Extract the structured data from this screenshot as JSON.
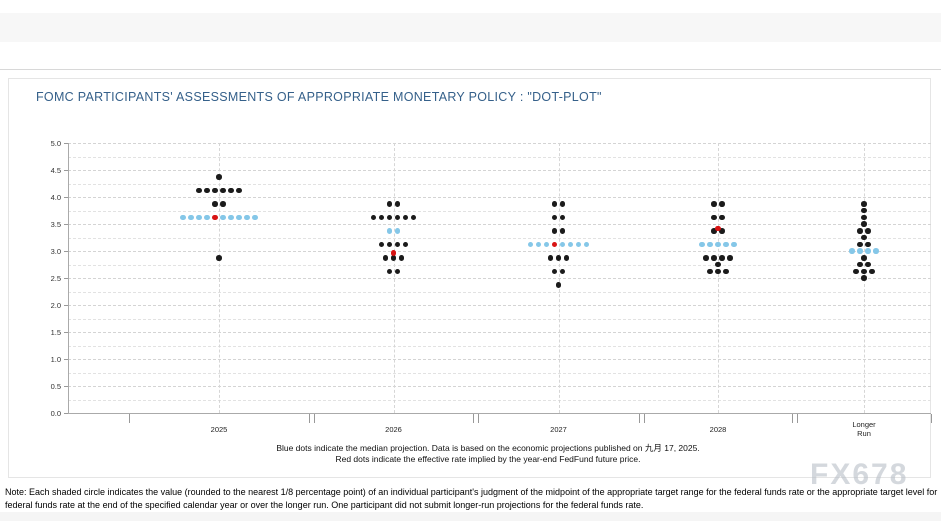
{
  "header": {
    "title": "FOMC PARTICIPANTS' ASSESSMENTS OF APPROPRIATE MONETARY POLICY : \"DOT-PLOT\""
  },
  "watermark": "FX678",
  "captions": {
    "line1": "Blue dots indicate the median projection. Data is based on the economic projections published on 九月 17, 2025.",
    "line2": "Red dots indicate the effective rate implied by the year-end FedFund future price."
  },
  "note": {
    "line1": "Note: Each shaded circle indicates the value (rounded to the nearest 1/8 percentage point) of an individual participant's judgment of the midpoint of the appropriate target range for the federal funds rate or the appropriate target level for the",
    "line2": "federal funds rate at the end of the specified calendar year or over the longer run. One participant did not submit longer-run projections for the federal funds rate."
  },
  "chart_data": {
    "type": "scatter",
    "subtype": "dot-plot",
    "title": "FOMC PARTICIPANTS' ASSESSMENTS OF APPROPRIATE MONETARY POLICY : \"DOT-PLOT\"",
    "ylim": [
      0.0,
      5.0
    ],
    "ytick_labels": [
      "5.0",
      "4.5",
      "4.0",
      "3.5",
      "3.0",
      "2.5",
      "2.0",
      "1.5",
      "1.0",
      "0.5",
      "0.0"
    ],
    "categories": [
      "2025",
      "2026",
      "2027",
      "2028",
      "Longer Run"
    ],
    "grid": "dashed, horizontal every 0.25, vertical dashed line at each column center",
    "legend": {
      "blue_dots": "median projection",
      "red_dots": "effective rate implied by the year-end FedFund future price",
      "black_dots": "individual participant projections"
    },
    "medians": {
      "2025": 3.625,
      "2026": 3.375,
      "2027": 3.125,
      "2028": 3.125,
      "Longer Run": 3.0
    },
    "effective_rate_dots": [
      {
        "column": "2025",
        "value": 3.625
      },
      {
        "column": "2026",
        "value": 2.96
      },
      {
        "column": "2027",
        "value": 3.125
      },
      {
        "column": "2028",
        "value": 3.42
      }
    ],
    "colors": {
      "participant_dot": "#1b1b1b",
      "median_dot": "#85c7e8",
      "effective_rate_dot": "#d81414",
      "title_text": "#35608a"
    },
    "columns": [
      {
        "label": "2025",
        "rows": [
          {
            "value": 4.375,
            "count": 1,
            "color": "black"
          },
          {
            "value": 4.125,
            "count": 6,
            "color": "black"
          },
          {
            "value": 3.875,
            "count": 2,
            "color": "black"
          },
          {
            "value": 3.625,
            "pattern": [
              "blue",
              "blue",
              "blue",
              "blue",
              "red",
              "blue",
              "blue",
              "blue",
              "blue",
              "blue"
            ]
          },
          {
            "value": 2.875,
            "count": 1,
            "color": "black"
          }
        ]
      },
      {
        "label": "2026",
        "rows": [
          {
            "value": 3.875,
            "count": 2,
            "color": "black"
          },
          {
            "value": 3.625,
            "count": 6,
            "color": "black"
          },
          {
            "value": 3.375,
            "count": 2,
            "color": "blue"
          },
          {
            "value": 3.125,
            "count": 4,
            "color": "black"
          },
          {
            "value": 2.875,
            "count": 3,
            "color": "black"
          },
          {
            "value": 2.625,
            "count": 2,
            "color": "black"
          },
          {
            "value": 2.96,
            "count": 1,
            "color": "red"
          }
        ]
      },
      {
        "label": "2027",
        "rows": [
          {
            "value": 3.875,
            "count": 2,
            "color": "black"
          },
          {
            "value": 3.625,
            "count": 2,
            "color": "black"
          },
          {
            "value": 3.375,
            "count": 2,
            "color": "black"
          },
          {
            "value": 3.125,
            "pattern": [
              "blue",
              "blue",
              "blue",
              "red",
              "blue",
              "blue",
              "blue",
              "blue"
            ]
          },
          {
            "value": 2.875,
            "count": 3,
            "color": "black"
          },
          {
            "value": 2.625,
            "count": 2,
            "color": "black"
          },
          {
            "value": 2.375,
            "count": 1,
            "color": "black"
          }
        ]
      },
      {
        "label": "2028",
        "rows": [
          {
            "value": 3.875,
            "count": 2,
            "color": "black"
          },
          {
            "value": 3.625,
            "count": 2,
            "color": "black"
          },
          {
            "value": 3.375,
            "count": 2,
            "color": "black"
          },
          {
            "value": 3.125,
            "count": 5,
            "color": "blue"
          },
          {
            "value": 2.875,
            "count": 4,
            "color": "black"
          },
          {
            "value": 2.75,
            "count": 1,
            "color": "black"
          },
          {
            "value": 2.625,
            "count": 3,
            "color": "black"
          },
          {
            "value": 3.42,
            "count": 1,
            "color": "red"
          }
        ]
      },
      {
        "label": "Longer Run",
        "label_lines": [
          "Longer",
          "Run"
        ],
        "rows": [
          {
            "value": 3.875,
            "count": 1,
            "color": "black"
          },
          {
            "value": 3.75,
            "count": 1,
            "color": "black"
          },
          {
            "value": 3.625,
            "count": 1,
            "color": "black"
          },
          {
            "value": 3.5,
            "count": 1,
            "color": "black"
          },
          {
            "value": 3.375,
            "count": 2,
            "color": "black"
          },
          {
            "value": 3.25,
            "count": 1,
            "color": "black"
          },
          {
            "value": 3.125,
            "count": 2,
            "color": "black"
          },
          {
            "value": 3.0,
            "count": 4,
            "color": "blue"
          },
          {
            "value": 2.875,
            "count": 1,
            "color": "black"
          },
          {
            "value": 2.75,
            "count": 2,
            "color": "black"
          },
          {
            "value": 2.625,
            "count": 3,
            "color": "black"
          },
          {
            "value": 2.5,
            "count": 1,
            "color": "black"
          }
        ]
      }
    ]
  }
}
